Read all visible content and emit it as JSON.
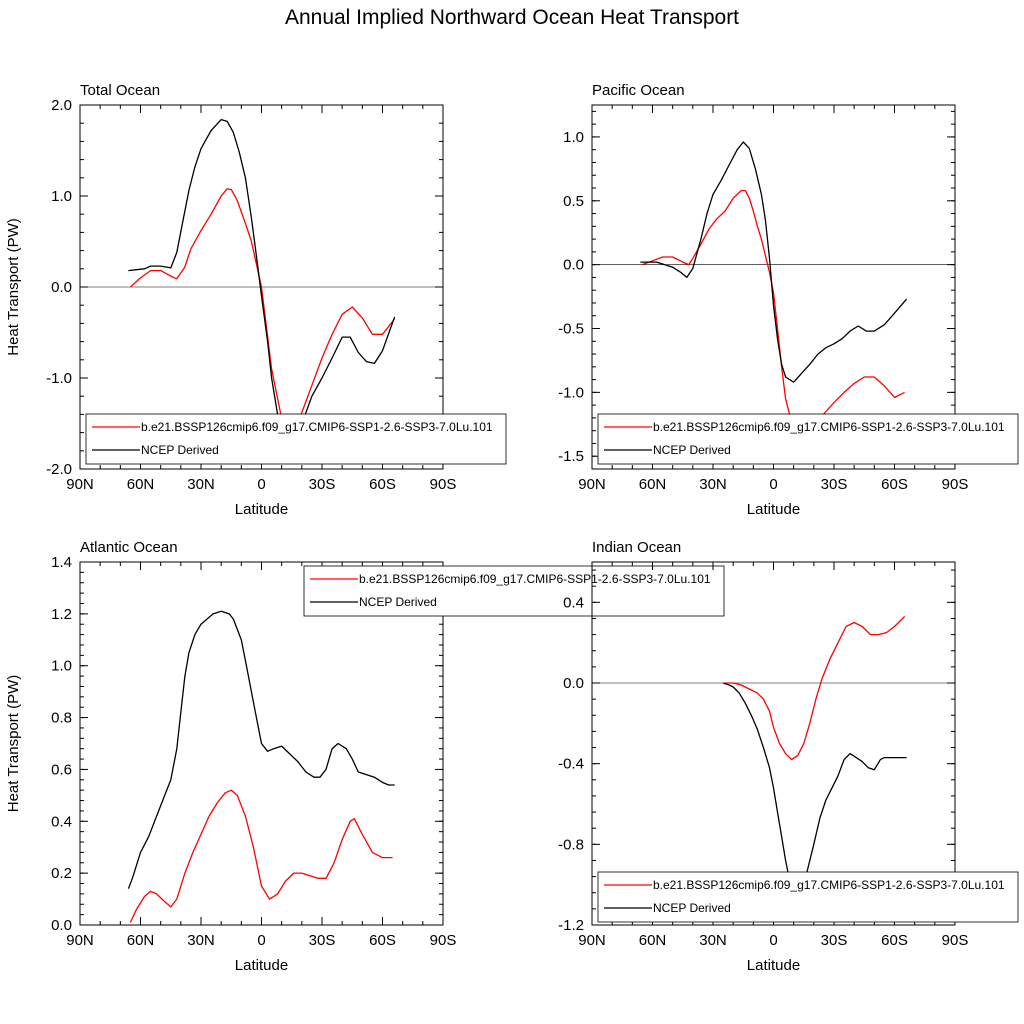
{
  "title": "Annual Implied Northward Ocean Heat Transport",
  "chart_data": [
    {
      "type": "line",
      "panel_title": "Total Ocean",
      "xlabel": "Latitude",
      "ylabel": "Heat Transport (PW)",
      "xlim": [
        90,
        -90
      ],
      "ylim": [
        -2.0,
        2.0
      ],
      "xticks": [
        90,
        60,
        30,
        0,
        -30,
        -60,
        -90
      ],
      "xtick_labels": [
        "90N",
        "60N",
        "30N",
        "0",
        "30S",
        "60S",
        "90S"
      ],
      "yticks": [
        -2.0,
        -1.0,
        0.0,
        1.0,
        2.0
      ],
      "ytick_labels": [
        "-2.0",
        "-1.0",
        "0.0",
        "1.0",
        "2.0"
      ],
      "zero_line": true,
      "legend_position": "bottom",
      "series": [
        {
          "name": "b.e21.BSSP126cmip6.f09_g17.CMIP6-SSP1-2.6-SSP3-7.0Lu.101",
          "color": "#ff0000",
          "x": [
            65,
            60,
            55,
            50,
            45,
            42,
            38,
            35,
            30,
            25,
            20,
            17,
            15,
            12,
            8,
            5,
            0,
            -5,
            -10,
            -13,
            -16,
            -20,
            -25,
            -30,
            -35,
            -40,
            -45,
            -50,
            -55,
            -60,
            -66
          ],
          "y": [
            0.0,
            0.1,
            0.18,
            0.18,
            0.12,
            0.09,
            0.22,
            0.42,
            0.62,
            0.8,
            1.0,
            1.08,
            1.07,
            0.95,
            0.7,
            0.5,
            0.0,
            -0.9,
            -1.45,
            -1.62,
            -1.62,
            -1.38,
            -1.08,
            -0.78,
            -0.52,
            -0.3,
            -0.22,
            -0.34,
            -0.52,
            -0.52,
            -0.35
          ]
        },
        {
          "name": "NCEP Derived",
          "color": "#000000",
          "x": [
            66,
            62,
            58,
            55,
            50,
            45,
            42,
            39,
            36,
            33,
            30,
            25,
            20,
            17,
            14,
            11,
            8,
            5,
            2,
            0,
            -3,
            -5,
            -8,
            -11,
            -14,
            -18,
            -22,
            -25,
            -30,
            -35,
            -40,
            -44,
            -48,
            -52,
            -56,
            -60,
            -66
          ],
          "y": [
            0.18,
            0.19,
            0.2,
            0.23,
            0.23,
            0.21,
            0.38,
            0.72,
            1.06,
            1.32,
            1.52,
            1.72,
            1.84,
            1.82,
            1.7,
            1.48,
            1.2,
            0.76,
            0.25,
            -0.1,
            -0.6,
            -1.0,
            -1.4,
            -1.62,
            -1.67,
            -1.6,
            -1.38,
            -1.2,
            -1.0,
            -0.78,
            -0.55,
            -0.55,
            -0.72,
            -0.82,
            -0.84,
            -0.7,
            -0.33
          ]
        }
      ]
    },
    {
      "type": "line",
      "panel_title": "Pacific Ocean",
      "xlabel": "Latitude",
      "ylabel": "",
      "xlim": [
        90,
        -90
      ],
      "ylim": [
        -1.6,
        1.25
      ],
      "xticks": [
        90,
        60,
        30,
        0,
        -30,
        -60,
        -90
      ],
      "xtick_labels": [
        "90N",
        "60N",
        "30N",
        "0",
        "30S",
        "60S",
        "90S"
      ],
      "yticks": [
        -1.5,
        -1.0,
        -0.5,
        0.0,
        0.5,
        1.0
      ],
      "ytick_labels": [
        "-1.5",
        "-1.0",
        "-0.5",
        "0.0",
        "0.5",
        "1.0"
      ],
      "zero_line": true,
      "legend_position": "bottom",
      "series": [
        {
          "name": "b.e21.BSSP126cmip6.f09_g17.CMIP6-SSP1-2.6-SSP3-7.0Lu.101",
          "color": "#ff0000",
          "x": [
            65,
            60,
            55,
            50,
            45,
            42,
            40,
            36,
            32,
            28,
            24,
            20,
            16,
            14,
            12,
            10,
            8,
            6,
            4,
            2,
            0,
            -2,
            -4,
            -6,
            -10,
            -14,
            -18,
            -22,
            -26,
            -30,
            -35,
            -40,
            -45,
            -50,
            -55,
            -60,
            -65
          ],
          "y": [
            0.0,
            0.03,
            0.06,
            0.06,
            0.02,
            0.0,
            0.05,
            0.16,
            0.28,
            0.36,
            0.42,
            0.52,
            0.58,
            0.58,
            0.52,
            0.42,
            0.3,
            0.2,
            0.07,
            -0.06,
            -0.22,
            -0.5,
            -0.8,
            -1.05,
            -1.3,
            -1.37,
            -1.3,
            -1.22,
            -1.15,
            -1.08,
            -1.0,
            -0.93,
            -0.88,
            -0.88,
            -0.95,
            -1.04,
            -1.0
          ]
        },
        {
          "name": "NCEP Derived",
          "color": "#000000",
          "x": [
            66,
            62,
            58,
            54,
            50,
            46,
            43,
            40,
            36,
            33,
            30,
            26,
            22,
            18,
            15,
            12,
            9,
            6,
            4,
            2,
            0,
            -2,
            -4,
            -6,
            -10,
            -14,
            -18,
            -22,
            -26,
            -30,
            -34,
            -38,
            -42,
            -46,
            -50,
            -55,
            -60,
            -66
          ],
          "y": [
            0.02,
            0.02,
            0.02,
            0.0,
            -0.02,
            -0.06,
            -0.1,
            -0.03,
            0.2,
            0.4,
            0.55,
            0.66,
            0.78,
            0.9,
            0.96,
            0.91,
            0.75,
            0.55,
            0.35,
            0.05,
            -0.32,
            -0.58,
            -0.78,
            -0.88,
            -0.92,
            -0.85,
            -0.78,
            -0.7,
            -0.65,
            -0.62,
            -0.58,
            -0.52,
            -0.48,
            -0.52,
            -0.52,
            -0.47,
            -0.38,
            -0.27
          ]
        }
      ]
    },
    {
      "type": "line",
      "panel_title": "Atlantic Ocean",
      "xlabel": "Latitude",
      "ylabel": "Heat Transport (PW)",
      "xlim": [
        90,
        -90
      ],
      "ylim": [
        0.0,
        1.4
      ],
      "xticks": [
        90,
        60,
        30,
        0,
        -30,
        -60,
        -90
      ],
      "xtick_labels": [
        "90N",
        "60N",
        "30N",
        "0",
        "30S",
        "60S",
        "90S"
      ],
      "yticks": [
        0.0,
        0.2,
        0.4,
        0.6,
        0.8,
        1.0,
        1.2,
        1.4
      ],
      "ytick_labels": [
        "0.0",
        "0.2",
        "0.4",
        "0.6",
        "0.8",
        "1.0",
        "1.2",
        "1.4"
      ],
      "zero_line": false,
      "legend_position": "top-right",
      "series": [
        {
          "name": "b.e21.BSSP126cmip6.f09_g17.CMIP6-SSP1-2.6-SSP3-7.0Lu.101",
          "color": "#ff0000",
          "x": [
            65,
            62,
            58,
            55,
            52,
            48,
            45,
            42,
            38,
            34,
            30,
            26,
            22,
            18,
            15,
            12,
            8,
            4,
            0,
            -4,
            -8,
            -12,
            -16,
            -20,
            -24,
            -28,
            -32,
            -36,
            -40,
            -44,
            -46,
            -50,
            -55,
            -60,
            -65
          ],
          "y": [
            0.01,
            0.06,
            0.11,
            0.13,
            0.12,
            0.09,
            0.07,
            0.1,
            0.2,
            0.28,
            0.35,
            0.42,
            0.47,
            0.51,
            0.52,
            0.5,
            0.42,
            0.3,
            0.15,
            0.1,
            0.12,
            0.17,
            0.2,
            0.2,
            0.19,
            0.18,
            0.18,
            0.24,
            0.33,
            0.4,
            0.41,
            0.35,
            0.28,
            0.26,
            0.26
          ]
        },
        {
          "name": "NCEP Derived",
          "color": "#000000",
          "x": [
            66,
            64,
            60,
            56,
            52,
            48,
            45,
            42,
            40,
            38,
            36,
            33,
            30,
            27,
            24,
            20,
            16,
            14,
            12,
            10,
            8,
            6,
            3,
            0,
            -3,
            -6,
            -10,
            -14,
            -18,
            -22,
            -26,
            -29,
            -32,
            -35,
            -38,
            -42,
            -45,
            -48,
            -52,
            -56,
            -60,
            -63,
            -66
          ],
          "y": [
            0.14,
            0.18,
            0.28,
            0.34,
            0.42,
            0.5,
            0.56,
            0.68,
            0.82,
            0.96,
            1.05,
            1.12,
            1.16,
            1.18,
            1.2,
            1.21,
            1.2,
            1.18,
            1.14,
            1.1,
            1.02,
            0.94,
            0.82,
            0.7,
            0.67,
            0.68,
            0.69,
            0.66,
            0.63,
            0.59,
            0.57,
            0.57,
            0.6,
            0.68,
            0.7,
            0.68,
            0.64,
            0.59,
            0.58,
            0.57,
            0.55,
            0.54,
            0.54
          ]
        }
      ]
    },
    {
      "type": "line",
      "panel_title": "Indian Ocean",
      "xlabel": "Latitude",
      "ylabel": "",
      "xlim": [
        90,
        -90
      ],
      "ylim": [
        -1.2,
        0.6
      ],
      "xticks": [
        90,
        60,
        30,
        0,
        -30,
        -60,
        -90
      ],
      "xtick_labels": [
        "90N",
        "60N",
        "30N",
        "0",
        "30S",
        "60S",
        "90S"
      ],
      "yticks": [
        -1.2,
        -0.8,
        -0.4,
        0.0,
        0.4
      ],
      "ytick_labels": [
        "-1.2",
        "-0.8",
        "-0.4",
        "0.0",
        "0.4"
      ],
      "zero_line": true,
      "legend_position": "bottom",
      "series": [
        {
          "name": "b.e21.BSSP126cmip6.f09_g17.CMIP6-SSP1-2.6-SSP3-7.0Lu.101",
          "color": "#ff0000",
          "x": [
            24,
            20,
            16,
            12,
            8,
            5,
            2,
            0,
            -3,
            -6,
            -9,
            -12,
            -15,
            -18,
            -21,
            -24,
            -28,
            -32,
            -36,
            -40,
            -44,
            -48,
            -52,
            -56,
            -60,
            -65
          ],
          "y": [
            0.0,
            0.0,
            -0.01,
            -0.03,
            -0.05,
            -0.08,
            -0.14,
            -0.22,
            -0.3,
            -0.35,
            -0.38,
            -0.36,
            -0.3,
            -0.2,
            -0.08,
            0.02,
            0.12,
            0.2,
            0.28,
            0.3,
            0.28,
            0.24,
            0.24,
            0.25,
            0.28,
            0.33
          ]
        },
        {
          "name": "NCEP Derived",
          "color": "#000000",
          "x": [
            25,
            22,
            20,
            17,
            14,
            11,
            8,
            5,
            2,
            0,
            -2,
            -4,
            -6,
            -8,
            -10,
            -12,
            -14,
            -16,
            -18,
            -20,
            -23,
            -26,
            -29,
            -32,
            -35,
            -38,
            -41,
            -44,
            -47,
            -50,
            -53,
            -55,
            -58,
            -62,
            -66
          ],
          "y": [
            0.0,
            -0.01,
            -0.02,
            -0.05,
            -0.1,
            -0.16,
            -0.23,
            -0.32,
            -0.42,
            -0.52,
            -0.64,
            -0.76,
            -0.88,
            -0.98,
            -1.03,
            -1.05,
            -1.02,
            -0.96,
            -0.88,
            -0.8,
            -0.67,
            -0.58,
            -0.52,
            -0.46,
            -0.38,
            -0.35,
            -0.37,
            -0.39,
            -0.42,
            -0.43,
            -0.38,
            -0.37,
            -0.37,
            -0.37,
            -0.37
          ]
        }
      ]
    }
  ]
}
